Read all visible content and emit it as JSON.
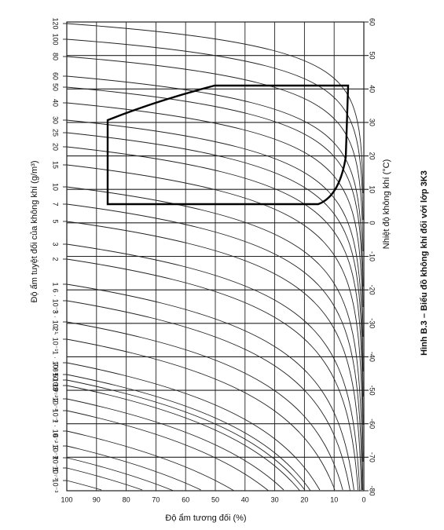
{
  "figure": {
    "caption": "Hình B.3 – Biểu đồ không khí đối với lớp 3K3",
    "left_axis_label": "Độ ẩm tuyệt đối của không khí (g/m³)",
    "right_axis_label": "Nhiệt độ không khí (°C)",
    "bottom_axis_label": "Độ ẩm tương đối (%)",
    "left_ticks": [
      "120",
      "100",
      "80",
      "60",
      "50",
      "40",
      "30",
      "25",
      "20",
      "15",
      "10",
      "7",
      "5",
      "3",
      "2",
      "1",
      "6 · 10⁻¹",
      "3 · 10⁻¹",
      "2 · 10⁻¹",
      "1 · 10⁻¹",
      "7 · 10⁻²",
      "6 · 10⁻²",
      "5 · 10⁻²",
      "3 · 10⁻²",
      "2 · 10⁻²",
      "1 · 10⁻²",
      "6 · 10⁻³",
      "3 · 10⁻³",
      "2 · 10⁻³",
      "1 · 10⁻³"
    ],
    "right_ticks": [
      "60",
      "50",
      "40",
      "30",
      "20",
      "10",
      "0",
      "-10",
      "-20",
      "-30",
      "-40",
      "-50",
      "-60",
      "-70",
      "-80"
    ],
    "bottom_ticks": [
      "100",
      "90",
      "80",
      "70",
      "60",
      "50",
      "40",
      "30",
      "20",
      "10",
      "0"
    ]
  }
}
